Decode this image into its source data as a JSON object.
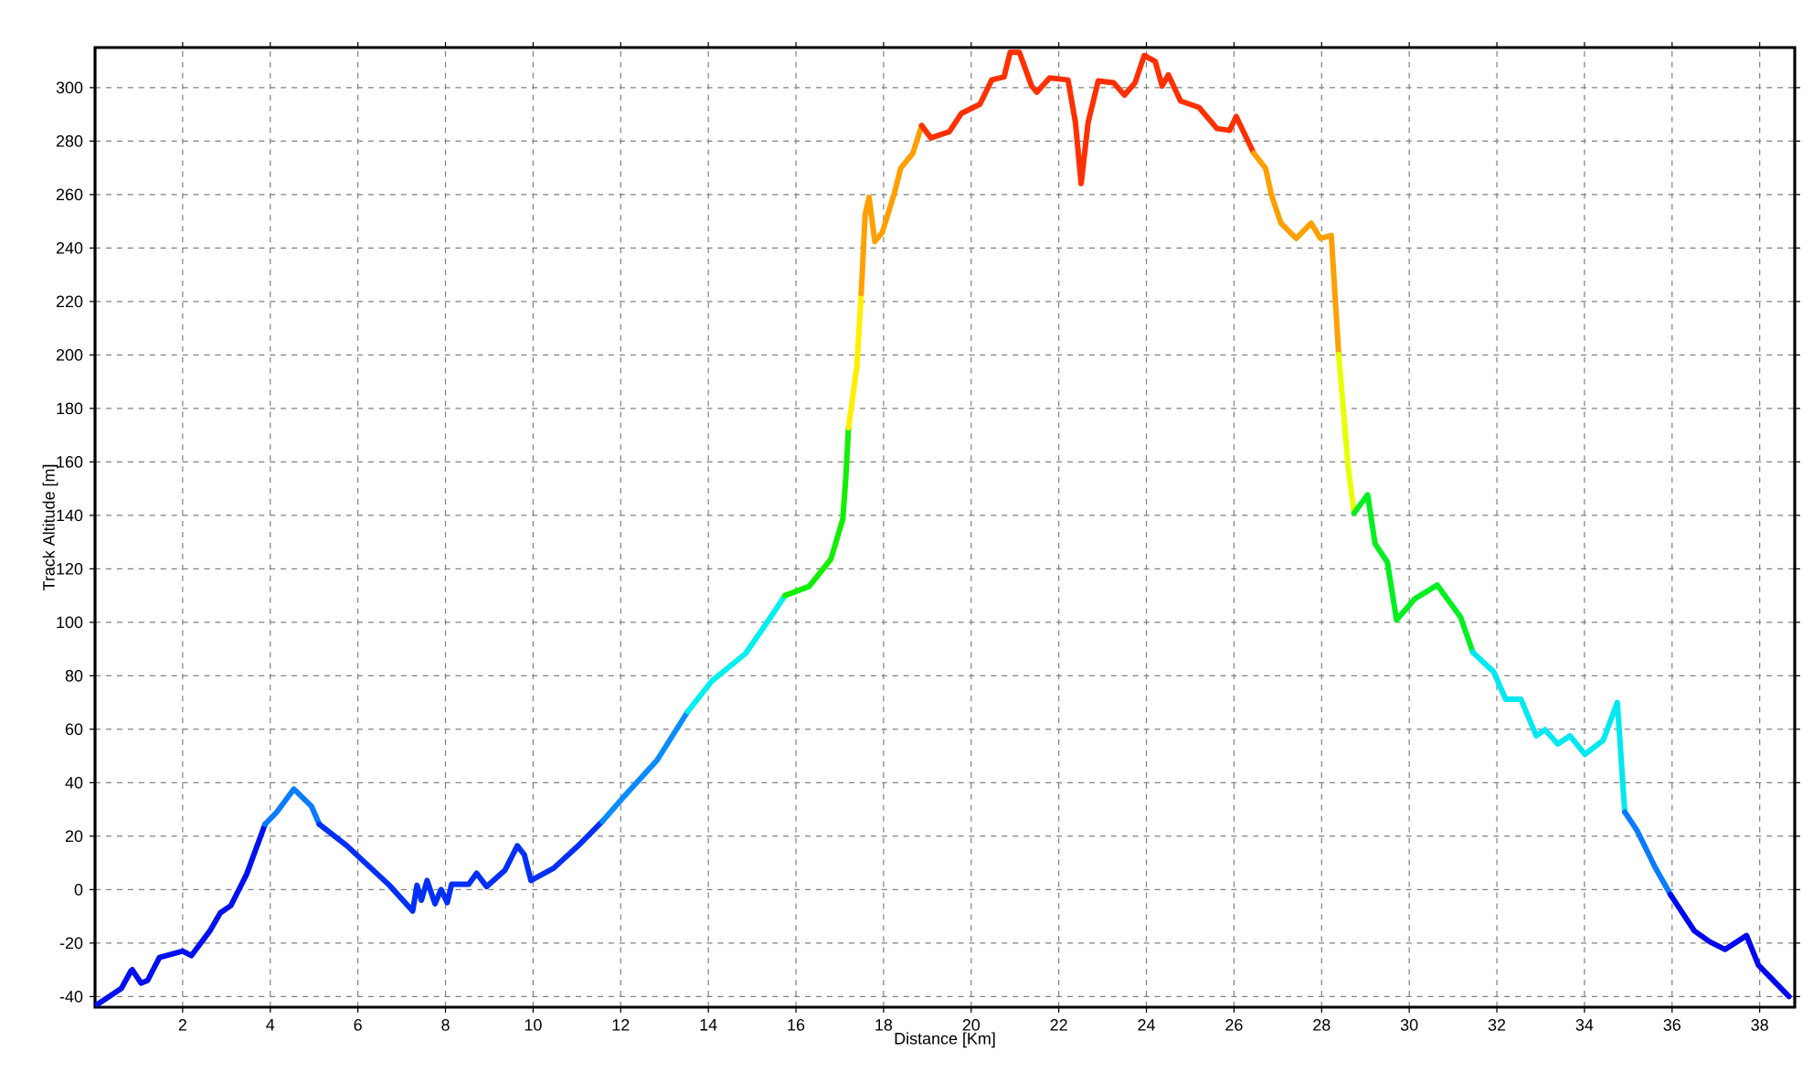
{
  "chart_data": {
    "type": "line",
    "xlabel": "Distance [Km]",
    "ylabel": "Track Altitude [m]",
    "xlim": [
      0,
      38.8
    ],
    "ylim": [
      -44,
      315
    ],
    "xticks": [
      2,
      4,
      6,
      8,
      10,
      12,
      14,
      16,
      18,
      20,
      22,
      24,
      26,
      28,
      30,
      32,
      34,
      36,
      38
    ],
    "yticks": [
      -40,
      -20,
      0,
      20,
      40,
      60,
      80,
      100,
      120,
      140,
      160,
      180,
      200,
      220,
      240,
      260,
      280,
      300
    ],
    "grid": true,
    "legend": false,
    "marker": "none",
    "line_style": "solid",
    "series": [
      {
        "color": "#0010ee",
        "x": [
          0.05,
          0.6,
          0.82,
          0.85,
          1.05,
          1.2,
          1.47,
          2.0,
          2.2,
          2.62,
          2.86,
          3.1,
          3.46,
          3.88
        ],
        "values": [
          -43,
          -37,
          -30.4,
          -30,
          -35,
          -34,
          -25.4,
          -23,
          -24.7,
          -15.5,
          -8.7,
          -6,
          5.7,
          24.4
        ]
      },
      {
        "color": "#0a7cff",
        "x": [
          3.88,
          4.15,
          4.54,
          4.94,
          5.12
        ],
        "values": [
          24.4,
          29,
          37.6,
          31.2,
          24.4
        ]
      },
      {
        "color": "#0030f8",
        "x": [
          5.12,
          5.75,
          6.72,
          7.25,
          7.35,
          7.45,
          7.58,
          7.76,
          7.9,
          8.04,
          8.14,
          8.53,
          8.71,
          8.94,
          9.36,
          9.64,
          9.8,
          9.95,
          10.47,
          11.03,
          11.58
        ],
        "values": [
          24.4,
          16.4,
          1.6,
          -8,
          1.6,
          -4,
          3.4,
          -5.3,
          0,
          -4.9,
          2,
          2,
          6.1,
          1.1,
          7.3,
          16.4,
          13,
          3.4,
          8,
          16.4,
          25.5
        ]
      },
      {
        "color": "#0a8cff",
        "x": [
          11.58,
          12.07,
          12.83,
          13.53
        ],
        "values": [
          25.5,
          34.7,
          48.4,
          66.6
        ]
      },
      {
        "color": "#00f0f0",
        "x": [
          13.53,
          14.08,
          14.85,
          15.33,
          15.75
        ],
        "values": [
          66.6,
          78,
          88.3,
          99.7,
          110
        ]
      },
      {
        "color": "#10f000",
        "x": [
          15.75,
          16.3,
          16.8,
          17.07,
          17.14,
          17.2
        ],
        "values": [
          110,
          113.4,
          123.7,
          138.6,
          154.5,
          172.8
        ]
      },
      {
        "color": "#ffee00",
        "x": [
          17.2,
          17.39,
          17.49
        ],
        "values": [
          172.8,
          195.6,
          223
        ]
      },
      {
        "color": "#ffa000",
        "x": [
          17.49,
          17.58,
          17.67,
          17.8,
          17.97,
          18.25,
          18.39,
          18.67,
          18.87
        ],
        "values": [
          223,
          252.7,
          259,
          242.4,
          245.8,
          260.7,
          269.8,
          275.5,
          285.8
        ]
      },
      {
        "color": "#ff3000",
        "x": [
          18.87,
          19.08,
          19.5,
          19.78,
          20.2,
          20.47,
          20.75,
          20.89,
          21.1,
          21.38,
          21.5,
          21.79,
          22.21,
          22.38,
          22.51,
          22.67,
          22.9,
          23.25,
          23.5,
          23.74,
          23.95,
          24.2,
          24.36,
          24.5,
          24.78,
          25.2,
          25.61,
          25.9,
          26.05,
          26.45
        ],
        "values": [
          285.8,
          281.2,
          283.5,
          290.4,
          293.8,
          302.9,
          304,
          313.2,
          313.2,
          300.6,
          298.3,
          303.6,
          302.9,
          287,
          264.1,
          287,
          302.5,
          301.8,
          297.2,
          301.8,
          312,
          309.8,
          300.6,
          304.8,
          295,
          292.6,
          284.7,
          284,
          289.2,
          275.5
        ]
      },
      {
        "color": "#ffa000",
        "x": [
          26.45,
          26.72,
          26.86,
          27.07,
          27.42,
          27.76,
          27.97,
          28.22,
          28.39
        ],
        "values": [
          275.5,
          269.8,
          259.5,
          249.3,
          243.6,
          249.3,
          243.6,
          244.7,
          200.2
        ]
      },
      {
        "color": "#e8ff00",
        "x": [
          28.39,
          28.6,
          28.74
        ],
        "values": [
          200.2,
          159.1,
          140.8
        ]
      },
      {
        "color": "#00f020",
        "x": [
          28.74,
          29.05,
          29.22,
          29.5,
          29.71,
          30.13,
          30.64,
          31.17,
          31.45
        ],
        "values": [
          140.8,
          147.7,
          129.4,
          122.5,
          100.9,
          108.8,
          113.9,
          102,
          88.8
        ]
      },
      {
        "color": "#00e8f0",
        "x": [
          31.45,
          31.93,
          32.2,
          32.55,
          32.9,
          33.1,
          33.39,
          33.67,
          34.01,
          34.43,
          34.75,
          34.92
        ],
        "values": [
          88.8,
          81.4,
          71.2,
          71.2,
          57.5,
          59.8,
          54.5,
          57.5,
          50.6,
          55.9,
          70,
          29
        ]
      },
      {
        "color": "#0a7cff",
        "x": [
          34.92,
          35.2,
          35.61,
          35.96
        ],
        "values": [
          29,
          22.1,
          8.4,
          -1.8
        ]
      },
      {
        "color": "#0008ee",
        "x": [
          35.96,
          36.51,
          36.86,
          37.21,
          37.7,
          37.97,
          38.67
        ],
        "values": [
          -1.8,
          -15.5,
          -19.5,
          -22.4,
          -17.2,
          -28.2,
          -40
        ]
      }
    ]
  }
}
